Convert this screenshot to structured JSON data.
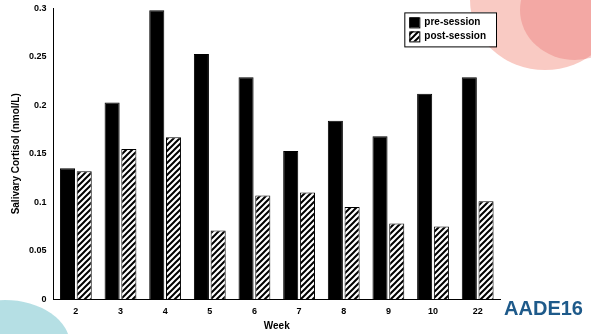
{
  "chart_data": {
    "type": "bar",
    "x_label": "Week",
    "y_label": "Salivary Cortisol (nmol/L)",
    "annotation": "AADE16",
    "categories": [
      "2",
      "3",
      "4",
      "5",
      "6",
      "7",
      "8",
      "9",
      "10",
      "22"
    ],
    "series": [
      {
        "name": "pre-session",
        "color": "#000000",
        "marker": "solid",
        "values": [
          0.135,
          0.203,
          0.298,
          0.253,
          0.229,
          0.153,
          0.184,
          0.168,
          0.212,
          0.229
        ]
      },
      {
        "name": "post-session",
        "color": "#000000",
        "marker": "hatch",
        "values": [
          0.132,
          0.155,
          0.167,
          0.071,
          0.107,
          0.11,
          0.095,
          0.078,
          0.075,
          0.101
        ]
      }
    ],
    "ylim": [
      0,
      0.3
    ],
    "yticks": [
      0,
      0.05,
      0.1,
      0.15,
      0.2,
      0.25,
      0.3
    ],
    "grid": false,
    "legend": "upper right"
  }
}
